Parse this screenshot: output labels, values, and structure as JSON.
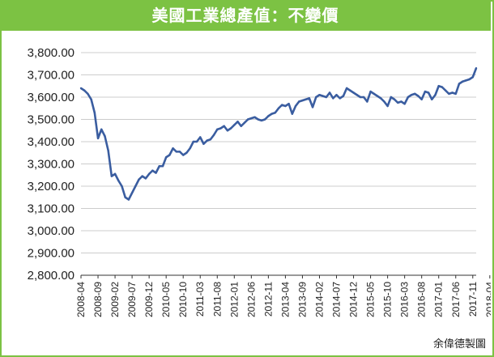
{
  "title": "美國工業總產值：不變價",
  "credit": "余偉德製圖",
  "colors": {
    "frame": "#7cc243",
    "line": "#3a5da0",
    "grid": "#cccccc",
    "axis": "#333333"
  },
  "chart_data": {
    "type": "line",
    "title": "美國工業總產值：不變價",
    "xlabel": "",
    "ylabel": "",
    "ylim": [
      2800,
      3800
    ],
    "yticks": [
      "3,800.00",
      "3,700.00",
      "3,600.00",
      "3,500.00",
      "3,400.00",
      "3,300.00",
      "3,200.00",
      "3,100.00",
      "3,000.00",
      "2,900.00",
      "2,800.00"
    ],
    "grid": true,
    "xtick_labels": [
      "2008-04",
      "2008-09",
      "2009-02",
      "2009-07",
      "2009-12",
      "2010-05",
      "2010-10",
      "2011-03",
      "2011-08",
      "2012-01",
      "2012-06",
      "2012-11",
      "2013-04",
      "2013-09",
      "2014-02",
      "2014-07",
      "2014-12",
      "2015-05",
      "2015-10",
      "2016-03",
      "2016-08",
      "2017-01",
      "2017-06",
      "2017-11",
      "2018-04"
    ],
    "series": [
      {
        "x_start": "2008-04",
        "x_end": "2018-04",
        "frequency": "monthly",
        "values": [
          3640,
          3630,
          3615,
          3590,
          3530,
          3415,
          3455,
          3425,
          3360,
          3245,
          3255,
          3225,
          3200,
          3150,
          3140,
          3170,
          3200,
          3230,
          3245,
          3235,
          3255,
          3270,
          3260,
          3290,
          3290,
          3330,
          3340,
          3370,
          3355,
          3355,
          3340,
          3350,
          3370,
          3400,
          3400,
          3420,
          3390,
          3405,
          3410,
          3430,
          3455,
          3460,
          3470,
          3450,
          3460,
          3475,
          3490,
          3470,
          3485,
          3500,
          3505,
          3510,
          3500,
          3495,
          3500,
          3515,
          3525,
          3530,
          3550,
          3565,
          3560,
          3570,
          3525,
          3560,
          3580,
          3585,
          3590,
          3595,
          3555,
          3600,
          3610,
          3605,
          3600,
          3620,
          3595,
          3610,
          3595,
          3605,
          3640,
          3630,
          3620,
          3610,
          3600,
          3600,
          3580,
          3625,
          3615,
          3605,
          3595,
          3580,
          3560,
          3600,
          3590,
          3575,
          3580,
          3570,
          3600,
          3610,
          3615,
          3605,
          3590,
          3625,
          3620,
          3590,
          3610,
          3650,
          3645,
          3630,
          3615,
          3620,
          3615,
          3660,
          3670,
          3675,
          3680,
          3690,
          3730
        ]
      }
    ]
  }
}
